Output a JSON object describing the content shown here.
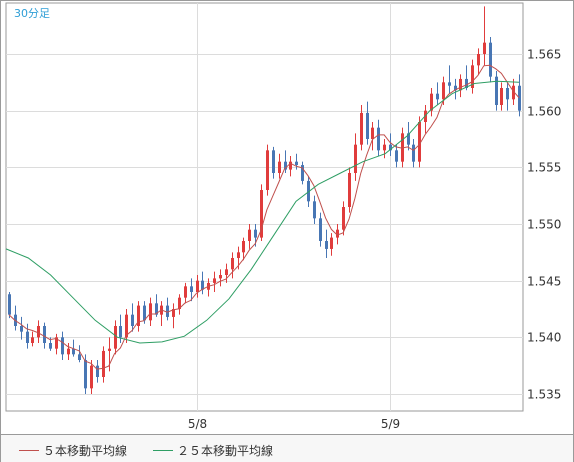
{
  "chart_data": {
    "type": "candlestick",
    "timeframe_label": "30分足",
    "xlabels": [
      "5/8",
      "5/9"
    ],
    "ylabels": [
      "1.535",
      "1.540",
      "1.545",
      "1.550",
      "1.555",
      "1.560",
      "1.565"
    ],
    "ylim": [
      1.5335,
      1.5695
    ],
    "grid": true,
    "colors": {
      "up": "#e03c3c",
      "down": "#4876b4",
      "ma5": "#c0504d",
      "ma25": "#2e9e64",
      "label_accent": "#2e9ed6"
    },
    "legend": [
      {
        "label": "５本移動平均線",
        "color": "#c0504d"
      },
      {
        "label": "２５本移動平均線",
        "color": "#2e9e64"
      }
    ],
    "ma25": [
      1.5478,
      1.547,
      1.5455,
      1.5435,
      1.5415,
      1.54,
      1.5395,
      1.5396,
      1.5401,
      1.5415,
      1.5434,
      1.546,
      1.549,
      1.552,
      1.5535,
      1.5545,
      1.5555,
      1.5562,
      1.5578,
      1.56,
      1.5615,
      1.5624,
      1.5626,
      1.5625
    ],
    "ohlc": [
      [
        1.5438,
        1.544,
        1.5417,
        1.542
      ],
      [
        1.542,
        1.5428,
        1.5406,
        1.541
      ],
      [
        1.541,
        1.5418,
        1.5398,
        1.5405
      ],
      [
        1.5405,
        1.5412,
        1.539,
        1.5395
      ],
      [
        1.5395,
        1.5405,
        1.5392,
        1.54
      ],
      [
        1.54,
        1.5415,
        1.5395,
        1.541
      ],
      [
        1.541,
        1.5413,
        1.539,
        1.5395
      ],
      [
        1.5395,
        1.54,
        1.5388,
        1.539
      ],
      [
        1.539,
        1.5403,
        1.5385,
        1.54
      ],
      [
        1.54,
        1.5405,
        1.538,
        1.5385
      ],
      [
        1.5385,
        1.5395,
        1.538,
        1.539
      ],
      [
        1.539,
        1.5398,
        1.5383,
        1.5385
      ],
      [
        1.5385,
        1.5393,
        1.5378,
        1.538
      ],
      [
        1.538,
        1.5385,
        1.535,
        1.5355
      ],
      [
        1.5355,
        1.538,
        1.535,
        1.5375
      ],
      [
        1.5375,
        1.538,
        1.536,
        1.5365
      ],
      [
        1.5365,
        1.5392,
        1.536,
        1.5388
      ],
      [
        1.5388,
        1.54,
        1.537,
        1.539
      ],
      [
        1.539,
        1.5415,
        1.5385,
        1.541
      ],
      [
        1.541,
        1.542,
        1.5395,
        1.54
      ],
      [
        1.54,
        1.5425,
        1.5395,
        1.542
      ],
      [
        1.542,
        1.543,
        1.5405,
        1.541
      ],
      [
        1.541,
        1.5432,
        1.5405,
        1.5428
      ],
      [
        1.5428,
        1.5432,
        1.5412,
        1.5415
      ],
      [
        1.5415,
        1.5435,
        1.541,
        1.543
      ],
      [
        1.543,
        1.5438,
        1.5418,
        1.542
      ],
      [
        1.542,
        1.5432,
        1.541,
        1.5428
      ],
      [
        1.5428,
        1.5435,
        1.5415,
        1.5418
      ],
      [
        1.5418,
        1.543,
        1.5408,
        1.5425
      ],
      [
        1.5425,
        1.5438,
        1.542,
        1.5435
      ],
      [
        1.5435,
        1.5448,
        1.543,
        1.5445
      ],
      [
        1.5445,
        1.5452,
        1.5432,
        1.544
      ],
      [
        1.544,
        1.5455,
        1.5435,
        1.545
      ],
      [
        1.545,
        1.5458,
        1.5438,
        1.5442
      ],
      [
        1.5442,
        1.5452,
        1.5436,
        1.5448
      ],
      [
        1.5448,
        1.5458,
        1.544,
        1.5452
      ],
      [
        1.5452,
        1.546,
        1.5445,
        1.5455
      ],
      [
        1.5455,
        1.5465,
        1.5448,
        1.546
      ],
      [
        1.546,
        1.5475,
        1.5452,
        1.547
      ],
      [
        1.547,
        1.548,
        1.546,
        1.5475
      ],
      [
        1.5475,
        1.5488,
        1.5468,
        1.5485
      ],
      [
        1.5485,
        1.55,
        1.5478,
        1.5495
      ],
      [
        1.5495,
        1.55,
        1.548,
        1.5488
      ],
      [
        1.5488,
        1.5535,
        1.5485,
        1.553
      ],
      [
        1.553,
        1.557,
        1.5525,
        1.5565
      ],
      [
        1.5565,
        1.5568,
        1.554,
        1.5545
      ],
      [
        1.5545,
        1.5562,
        1.554,
        1.5555
      ],
      [
        1.5555,
        1.5565,
        1.5545,
        1.5548
      ],
      [
        1.5548,
        1.556,
        1.5542,
        1.5555
      ],
      [
        1.5555,
        1.5562,
        1.5548,
        1.5552
      ],
      [
        1.5552,
        1.5555,
        1.5535,
        1.5538
      ],
      [
        1.5538,
        1.5542,
        1.5515,
        1.552
      ],
      [
        1.552,
        1.5525,
        1.55,
        1.5505
      ],
      [
        1.5505,
        1.551,
        1.548,
        1.5485
      ],
      [
        1.5485,
        1.5495,
        1.547,
        1.5478
      ],
      [
        1.5478,
        1.5492,
        1.5472,
        1.5488
      ],
      [
        1.5488,
        1.55,
        1.5482,
        1.5495
      ],
      [
        1.5495,
        1.552,
        1.549,
        1.5515
      ],
      [
        1.5515,
        1.555,
        1.551,
        1.5545
      ],
      [
        1.5545,
        1.558,
        1.5538,
        1.557
      ],
      [
        1.557,
        1.5605,
        1.5565,
        1.5598
      ],
      [
        1.5598,
        1.5608,
        1.557,
        1.5575
      ],
      [
        1.5575,
        1.559,
        1.5565,
        1.5585
      ],
      [
        1.5585,
        1.5592,
        1.556,
        1.5565
      ],
      [
        1.5565,
        1.5575,
        1.5558,
        1.557
      ],
      [
        1.557,
        1.558,
        1.556,
        1.5565
      ],
      [
        1.5565,
        1.557,
        1.555,
        1.5555
      ],
      [
        1.5555,
        1.5585,
        1.555,
        1.558
      ],
      [
        1.558,
        1.559,
        1.5565,
        1.557
      ],
      [
        1.557,
        1.5575,
        1.555,
        1.5555
      ],
      [
        1.5555,
        1.5595,
        1.555,
        1.559
      ],
      [
        1.559,
        1.5605,
        1.558,
        1.56
      ],
      [
        1.56,
        1.562,
        1.5595,
        1.5615
      ],
      [
        1.5615,
        1.5625,
        1.5605,
        1.561
      ],
      [
        1.561,
        1.563,
        1.5605,
        1.5625
      ],
      [
        1.5625,
        1.564,
        1.5615,
        1.5622
      ],
      [
        1.5622,
        1.5628,
        1.561,
        1.5618
      ],
      [
        1.5618,
        1.5632,
        1.5612,
        1.5628
      ],
      [
        1.5628,
        1.564,
        1.5618,
        1.562
      ],
      [
        1.562,
        1.5645,
        1.5615,
        1.564
      ],
      [
        1.564,
        1.5655,
        1.5632,
        1.565
      ],
      [
        1.565,
        1.5692,
        1.564,
        1.566
      ],
      [
        1.566,
        1.5665,
        1.5625,
        1.563
      ],
      [
        1.563,
        1.5635,
        1.56,
        1.5605
      ],
      [
        1.5605,
        1.5625,
        1.56,
        1.562
      ],
      [
        1.562,
        1.5625,
        1.56,
        1.561
      ],
      [
        1.561,
        1.5628,
        1.5605,
        1.5622
      ],
      [
        1.5622,
        1.5632,
        1.5595,
        1.56
      ]
    ]
  }
}
